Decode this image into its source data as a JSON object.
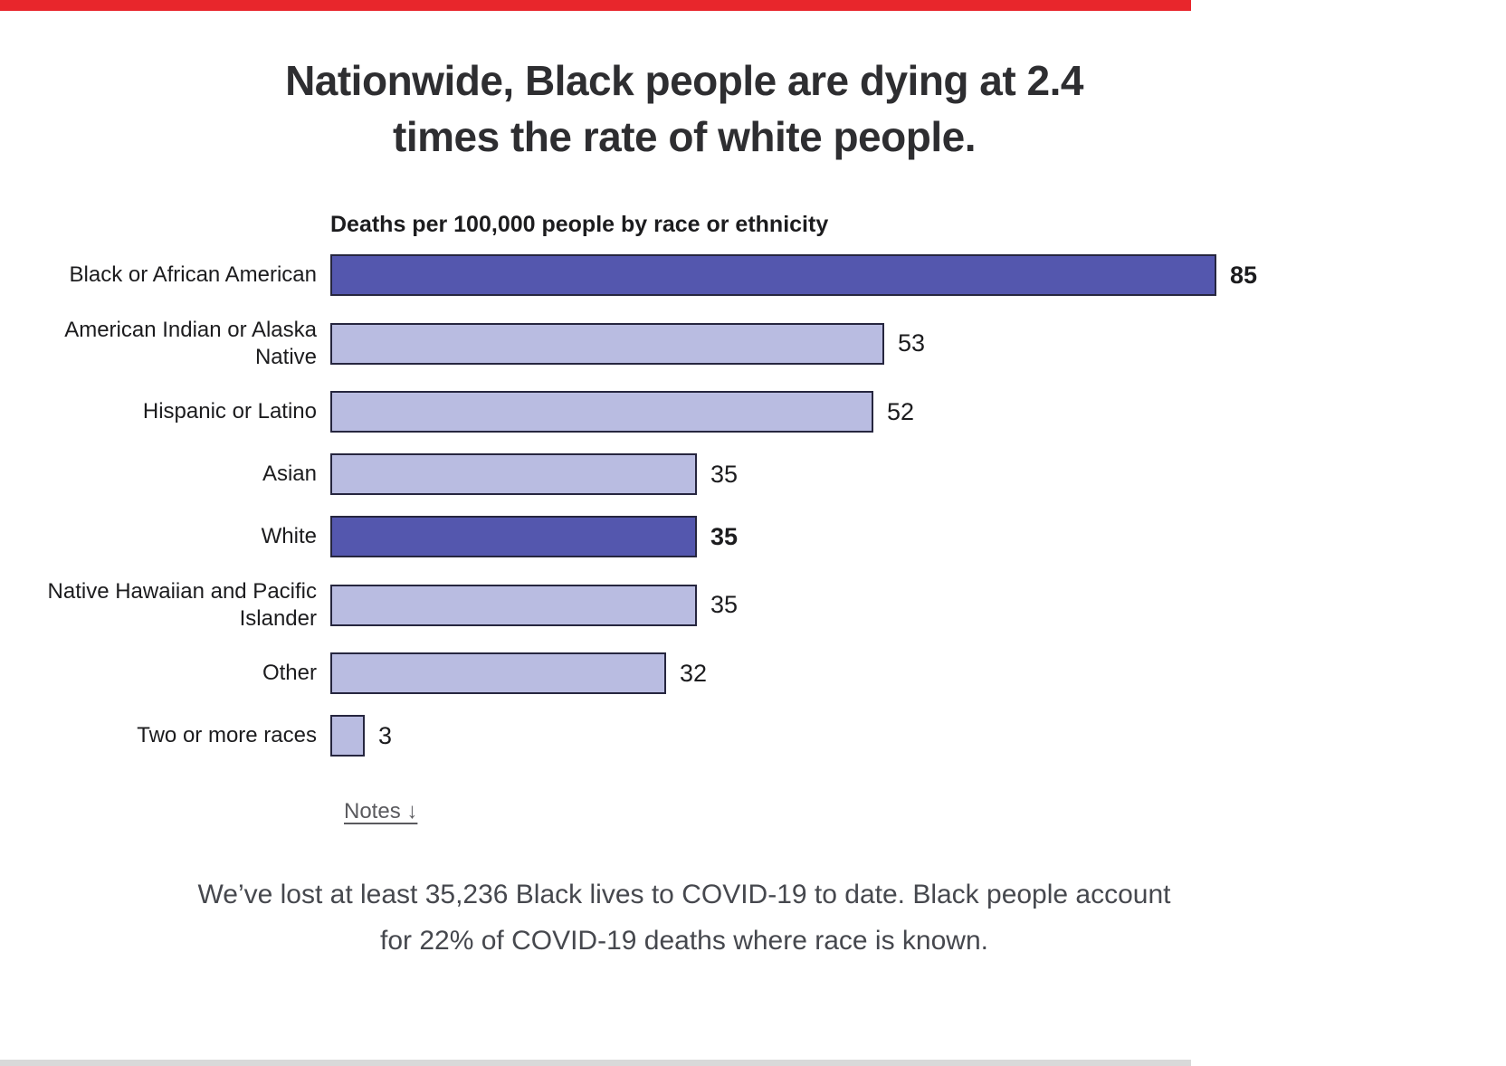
{
  "header": {
    "title": "Nationwide, Black people are dying at 2.4 times the rate of white people."
  },
  "chart_data": {
    "type": "bar",
    "orientation": "horizontal",
    "title": "Deaths per 100,000 people by race or ethnicity",
    "categories": [
      "Black or African American",
      "American Indian or Alaska Native",
      "Hispanic or Latino",
      "Asian",
      "White",
      "Native Hawaiian and Pacific Islander",
      "Other",
      "Two or more races"
    ],
    "values": [
      85,
      53,
      52,
      35,
      35,
      35,
      32,
      3
    ],
    "highlighted": [
      true,
      false,
      false,
      false,
      true,
      false,
      false,
      false
    ],
    "xlim": [
      0,
      85
    ],
    "legend": "none",
    "grid": false,
    "colors": {
      "highlight_fill": "#5457ae",
      "default_fill": "#b9bce1",
      "bar_border": "#26263f"
    }
  },
  "notes": {
    "label": "Notes ↓"
  },
  "footer": {
    "text": "We’ve lost at least 35,236 Black lives to COVID-19 to date. Black people account for 22% of COVID-19 deaths where race is known."
  }
}
